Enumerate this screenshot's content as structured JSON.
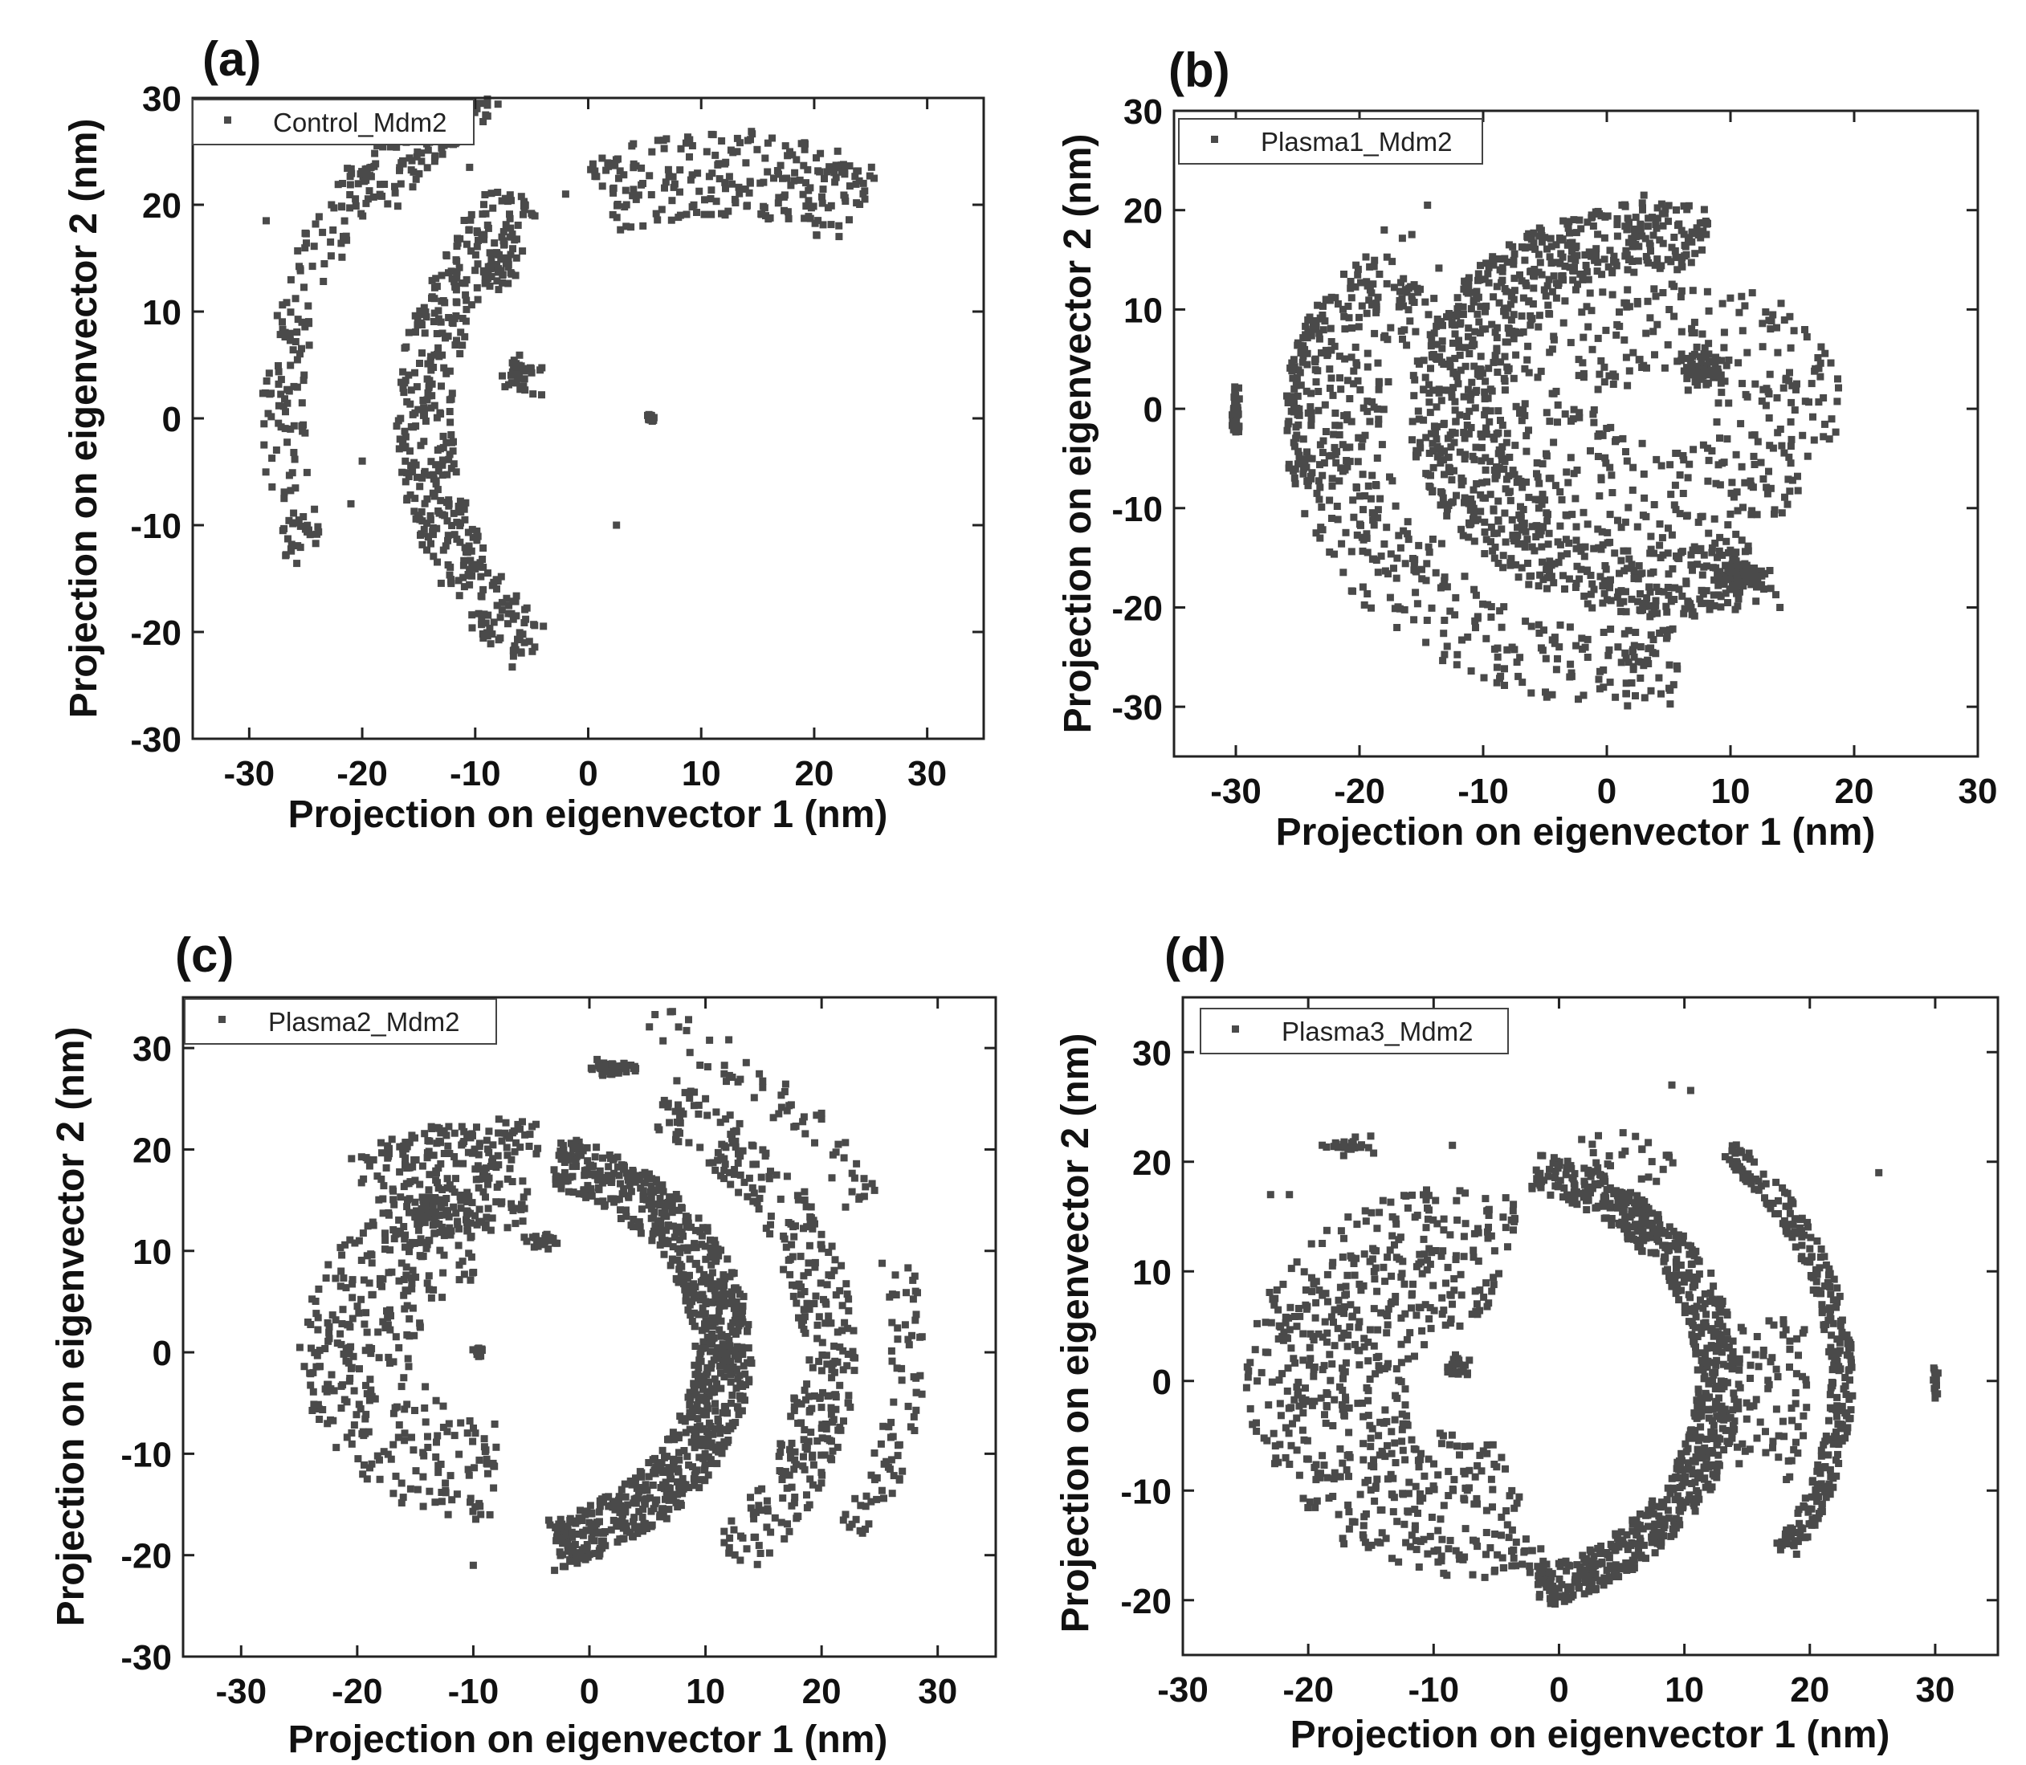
{
  "figure": {
    "point_color": "#4a4a4a",
    "axis_color": "#222222"
  },
  "chart_data": [
    {
      "panel": "(a)",
      "type": "scatter",
      "series_name": "Control_Mdm2",
      "xlabel": "Projection on eigenvector 1 (nm)",
      "ylabel": "Projection on eigenvector 2 (nm)",
      "xlim": [
        -35,
        35
      ],
      "ylim": [
        -30,
        30
      ],
      "xticks": [
        -30,
        -20,
        -10,
        0,
        10,
        20,
        30
      ],
      "yticks": [
        -30,
        -20,
        -10,
        0,
        10,
        20,
        30
      ],
      "legend": "top-left",
      "clusters": [
        {
          "kind": "arc",
          "cx": 15,
          "cy": 0,
          "r_in": 27,
          "r_out": 32,
          "a0": 135,
          "a1": 228,
          "n": 420
        },
        {
          "kind": "arc",
          "cx": 12,
          "cy": 0,
          "r_in": 37,
          "r_out": 41,
          "a0": 143,
          "a1": 200,
          "n": 160
        },
        {
          "kind": "arc",
          "cx": 12,
          "cy": 0,
          "r_in": 35,
          "r_out": 40,
          "a0": 110,
          "a1": 146,
          "n": 170
        },
        {
          "kind": "arc",
          "cx": 12,
          "cy": 0,
          "r_in": 19,
          "r_out": 27,
          "a0": 58,
          "a1": 118,
          "n": 230
        },
        {
          "kind": "blob",
          "x": -6,
          "y": 4,
          "sx": 2.5,
          "sy": 2.5,
          "n": 35
        },
        {
          "kind": "blob",
          "x": -8,
          "y": 14,
          "sx": 2.5,
          "sy": 3,
          "n": 35
        },
        {
          "kind": "blob",
          "x": 5.5,
          "y": 0,
          "sx": 0.5,
          "sy": 0.5,
          "n": 25
        },
        {
          "kind": "points",
          "pts": [
            [
              -28.5,
              18.5
            ],
            [
              -20,
              -4
            ],
            [
              -21,
              -8
            ],
            [
              2.5,
              -10
            ],
            [
              -2,
              21
            ],
            [
              13,
              20.5
            ],
            [
              -10.5,
              23.5
            ]
          ]
        }
      ]
    },
    {
      "panel": "(b)",
      "type": "scatter",
      "series_name": "Plasma1_Mdm2",
      "xlabel": "Projection on eigenvector 1 (nm)",
      "ylabel": "Projection on eigenvector 2 (nm)",
      "xlim": [
        -35,
        30
      ],
      "ylim": [
        -35,
        30
      ],
      "xticks": [
        -30,
        -20,
        -10,
        0,
        10,
        20,
        30
      ],
      "yticks": [
        -30,
        -20,
        -10,
        0,
        10,
        20,
        30
      ],
      "legend": "top-left",
      "clusters": [
        {
          "kind": "arc",
          "cx": 5,
          "cy": 0,
          "r_in": 14,
          "r_out": 21,
          "a0": 80,
          "a1": 295,
          "n": 900
        },
        {
          "kind": "arc",
          "cx": 5,
          "cy": 0,
          "r_in": 4,
          "r_out": 14,
          "a0": 0,
          "a1": 360,
          "n": 380
        },
        {
          "kind": "arc",
          "cx": 2,
          "cy": -2,
          "r_in": 20,
          "r_out": 28,
          "a0": 140,
          "a1": 280,
          "n": 380
        },
        {
          "kind": "arc",
          "cx": -3,
          "cy": 0,
          "r_in": 17,
          "r_out": 22,
          "a0": 125,
          "a1": 240,
          "n": 90
        },
        {
          "kind": "arc",
          "cx": -3,
          "cy": 0,
          "r_in": 22,
          "r_out": 23,
          "a0": 150,
          "a1": 205,
          "n": 60
        },
        {
          "kind": "blob",
          "x": -30,
          "y": 0,
          "sx": 0.4,
          "sy": 3,
          "n": 45
        },
        {
          "kind": "blob",
          "x": 8,
          "y": 4,
          "sx": 2.5,
          "sy": 2.5,
          "n": 60
        },
        {
          "kind": "blob",
          "x": 11,
          "y": -17,
          "sx": 2.5,
          "sy": 1.8,
          "n": 90
        },
        {
          "kind": "points",
          "pts": [
            [
              -14.5,
              20.5
            ],
            [
              3,
              21.5
            ],
            [
              -18,
              18
            ],
            [
              12,
              2.5
            ],
            [
              -3,
              -27
            ],
            [
              14,
              -20
            ]
          ]
        }
      ]
    },
    {
      "panel": "(c)",
      "type": "scatter",
      "series_name": "Plasma2_Mdm2",
      "xlabel": "Projection on eigenvector 1 (nm)",
      "ylabel": "Projection on eigenvector 2 (nm)",
      "xlim": [
        -35,
        35
      ],
      "ylim": [
        -30,
        35
      ],
      "xticks": [
        -30,
        -20,
        -10,
        0,
        10,
        20,
        30
      ],
      "yticks": [
        -30,
        -20,
        -10,
        0,
        10,
        20,
        30
      ],
      "legend": "top-left",
      "clusters": [
        {
          "kind": "arc",
          "cx": -8,
          "cy": 0,
          "r_in": 17,
          "r_out": 22,
          "a0": -75,
          "a1": 75,
          "n": 900
        },
        {
          "kind": "arc",
          "cx": -8,
          "cy": 0,
          "r_in": 7,
          "r_out": 17,
          "a0": 100,
          "a1": 270,
          "n": 350
        },
        {
          "kind": "arc",
          "cx": -8,
          "cy": 0,
          "r_in": 26,
          "r_out": 31,
          "a0": -45,
          "a1": 60,
          "n": 350
        },
        {
          "kind": "arc",
          "cx": -8,
          "cy": 0,
          "r_in": 33,
          "r_out": 37,
          "a0": 25,
          "a1": 70,
          "n": 60
        },
        {
          "kind": "arc",
          "cx": -8,
          "cy": 0,
          "r_in": 34,
          "r_out": 37,
          "a0": -30,
          "a1": 15,
          "n": 80
        },
        {
          "kind": "arc",
          "cx": -8,
          "cy": 0,
          "r_in": 12,
          "r_out": 23,
          "a0": 80,
          "a1": 125,
          "n": 260
        },
        {
          "kind": "blob",
          "x": -14,
          "y": 14,
          "sx": 1.2,
          "sy": 2,
          "n": 40
        },
        {
          "kind": "blob",
          "x": -9.5,
          "y": 0,
          "sx": 0.5,
          "sy": 0.5,
          "n": 20
        },
        {
          "kind": "blob",
          "x": 2,
          "y": 28,
          "sx": 2.5,
          "sy": 1,
          "n": 45
        },
        {
          "kind": "blob",
          "x": -4,
          "y": 11,
          "sx": 2,
          "sy": 1,
          "n": 30
        },
        {
          "kind": "points",
          "pts": [
            [
              -17,
              21
            ],
            [
              20,
              23
            ],
            [
              13,
              -20.5
            ],
            [
              -10,
              -21
            ],
            [
              -3,
              -21.5
            ],
            [
              10,
              25
            ]
          ]
        }
      ]
    },
    {
      "panel": "(d)",
      "type": "scatter",
      "series_name": "Plasma3_Mdm2",
      "xlabel": "Projection on eigenvector 1 (nm)",
      "ylabel": "Projection on eigenvector 2 (nm)",
      "xlim": [
        -30,
        35
      ],
      "ylim": [
        -25,
        35
      ],
      "xticks": [
        -30,
        -20,
        -10,
        0,
        10,
        20,
        30
      ],
      "yticks": [
        -20,
        -10,
        0,
        10,
        20,
        30
      ],
      "legend": "top-left",
      "clusters": [
        {
          "kind": "arc",
          "cx": -7,
          "cy": 0,
          "r_in": 18,
          "r_out": 21.5,
          "a0": -75,
          "a1": 75,
          "n": 800
        },
        {
          "kind": "arc",
          "cx": -7,
          "cy": 0,
          "r_in": 5,
          "r_out": 18,
          "a0": 75,
          "a1": 290,
          "n": 650
        },
        {
          "kind": "arc",
          "cx": -7,
          "cy": 0,
          "r_in": 28.5,
          "r_out": 30.5,
          "a0": -32,
          "a1": 46,
          "n": 320
        },
        {
          "kind": "arc",
          "cx": -7,
          "cy": 0,
          "r_in": 22,
          "r_out": 27,
          "a0": -20,
          "a1": 15,
          "n": 70
        },
        {
          "kind": "arc",
          "cx": -7,
          "cy": 0,
          "r_in": 21,
          "r_out": 26,
          "a0": 50,
          "a1": 70,
          "n": 25
        },
        {
          "kind": "blob",
          "x": -17,
          "y": 21.5,
          "sx": 3.5,
          "sy": 1.2,
          "n": 25
        },
        {
          "kind": "blob",
          "x": -8,
          "y": 1.5,
          "sx": 1.2,
          "sy": 1.2,
          "n": 25
        },
        {
          "kind": "blob",
          "x": 30,
          "y": 0,
          "sx": 0.3,
          "sy": 2,
          "n": 12
        },
        {
          "kind": "points",
          "pts": [
            [
              -23,
              17
            ],
            [
              -21.5,
              17
            ],
            [
              25.5,
              19
            ],
            [
              9,
              27
            ],
            [
              10.5,
              26.5
            ],
            [
              -8.5,
              21.5
            ]
          ]
        }
      ]
    }
  ]
}
